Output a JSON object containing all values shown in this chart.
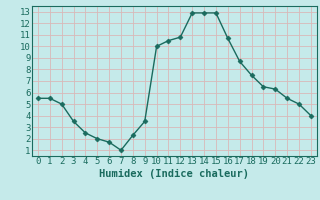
{
  "x": [
    0,
    1,
    2,
    3,
    4,
    5,
    6,
    7,
    8,
    9,
    10,
    11,
    12,
    13,
    14,
    15,
    16,
    17,
    18,
    19,
    20,
    21,
    22,
    23
  ],
  "y": [
    5.5,
    5.5,
    5.0,
    3.5,
    2.5,
    2.0,
    1.7,
    1.0,
    2.3,
    3.5,
    10.0,
    10.5,
    10.8,
    12.9,
    12.9,
    12.9,
    10.7,
    8.7,
    7.5,
    6.5,
    6.3,
    5.5,
    5.0,
    4.0
  ],
  "line_color": "#1a6b5e",
  "marker": "D",
  "marker_size": 2.5,
  "bg_color": "#c5eaea",
  "grid_color": "#d9b8b8",
  "xlabel": "Humidex (Indice chaleur)",
  "ylabel": "",
  "xlim": [
    -0.5,
    23.5
  ],
  "ylim": [
    0.5,
    13.5
  ],
  "yticks": [
    1,
    2,
    3,
    4,
    5,
    6,
    7,
    8,
    9,
    10,
    11,
    12,
    13
  ],
  "xticks": [
    0,
    1,
    2,
    3,
    4,
    5,
    6,
    7,
    8,
    9,
    10,
    11,
    12,
    13,
    14,
    15,
    16,
    17,
    18,
    19,
    20,
    21,
    22,
    23
  ],
  "font_color": "#1a6b5e",
  "tick_fontsize": 6.5,
  "xlabel_fontsize": 7.5
}
